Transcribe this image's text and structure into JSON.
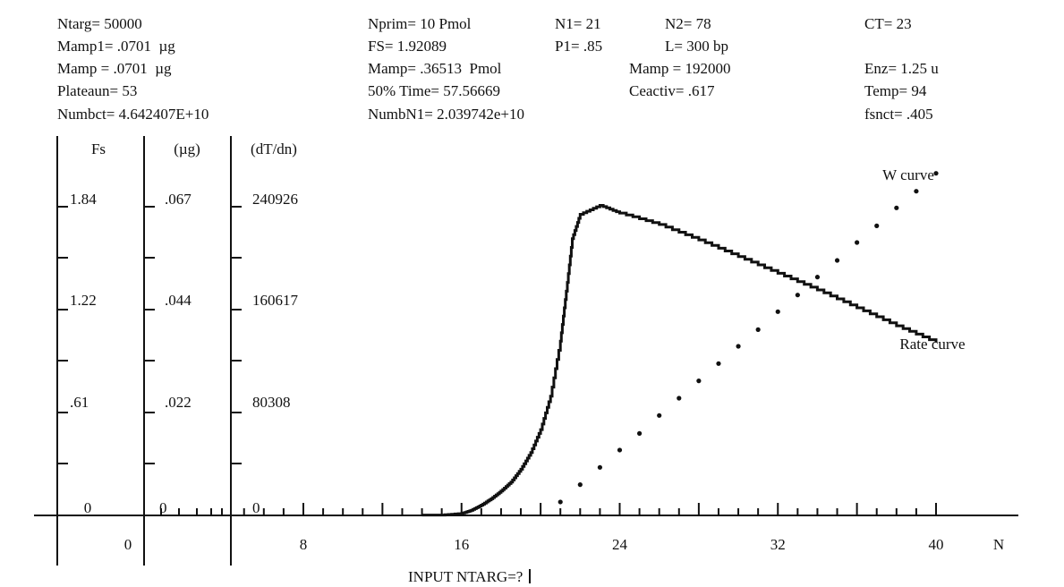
{
  "params": {
    "ntarg": {
      "label": "Ntarg",
      "value": "50000"
    },
    "mamp1": {
      "label": "Mamp1",
      "value": ".0701  µg"
    },
    "mamp_ug": {
      "label": "Mamp ",
      "value": ".0701  µg"
    },
    "plateaun": {
      "label": "Plateaun",
      "value": "53"
    },
    "numbct": {
      "label": "Numbct",
      "value": "4.642407E+10"
    },
    "nprim": {
      "label": "Nprim",
      "value": "10 Pmol"
    },
    "fs": {
      "label": "FS",
      "value": "1.92089"
    },
    "mamp_pmol": {
      "label": "Mamp",
      "value": ".36513  Pmol"
    },
    "time50": {
      "label": "50% Time",
      "value": "57.56669"
    },
    "numbn1": {
      "label": "NumbN1",
      "value": "2.039742e+10"
    },
    "n1": {
      "label": "N1",
      "value": "21"
    },
    "p1": {
      "label": "P1",
      "value": ".85"
    },
    "n2": {
      "label": "N2",
      "value": "78"
    },
    "l": {
      "label": "L",
      "value": "300 bp"
    },
    "mamp_mol": {
      "label": "Mamp ",
      "value": "192000"
    },
    "ceactiv": {
      "label": "Ceactiv",
      "value": ".617"
    },
    "ct": {
      "label": "CT",
      "value": "23"
    },
    "enz": {
      "label": "Enz",
      "value": "1.25 u"
    },
    "temp": {
      "label": "Temp",
      "value": "94"
    },
    "fsnct": {
      "label": "fsnct",
      "value": ".405"
    }
  },
  "prompt": "INPUT NTARG=?",
  "chart_data": {
    "type": "line",
    "xlabel": "N",
    "xlim": [
      0,
      40
    ],
    "x_ticks": [
      8,
      16,
      24,
      32,
      40
    ],
    "axes": [
      {
        "label": "Fs",
        "ticks": [
          "0",
          ".61",
          "1.22",
          "1.84"
        ]
      },
      {
        "label": "(µg)",
        "ticks": [
          "0",
          ".022",
          ".044",
          ".067"
        ]
      },
      {
        "label": "(dT/dn)",
        "ticks": [
          "0",
          "80308",
          "160617",
          "240926"
        ]
      }
    ],
    "ylim": [
      0,
      291000
    ],
    "left_zero_tick": "0",
    "series": [
      {
        "name": "Rate curve",
        "style": "step",
        "x": [
          14,
          15,
          16,
          16.5,
          17,
          17.5,
          18,
          18.5,
          19,
          19.5,
          20,
          20.5,
          21,
          21.3,
          21.6,
          22,
          23,
          24,
          26,
          28,
          30,
          32,
          34,
          36,
          38,
          40
        ],
        "y": [
          300,
          300,
          1500,
          4000,
          8000,
          13000,
          19000,
          26000,
          36000,
          49000,
          67000,
          93000,
          136000,
          175000,
          216000,
          235000,
          242000,
          236000,
          227000,
          215000,
          202000,
          189000,
          176000,
          162000,
          148000,
          135000
        ]
      },
      {
        "name": "W  curve",
        "style": "dots",
        "x": [
          21,
          22,
          23,
          24,
          25,
          26,
          27,
          28,
          29,
          30,
          31,
          32,
          33,
          34,
          35,
          36,
          37,
          38,
          39,
          40
        ],
        "y": [
          10500,
          24000,
          37500,
          51000,
          64000,
          78000,
          91500,
          105000,
          118500,
          132000,
          145000,
          159000,
          172000,
          186000,
          199000,
          213000,
          226000,
          240000,
          253000,
          267000
        ]
      }
    ]
  }
}
